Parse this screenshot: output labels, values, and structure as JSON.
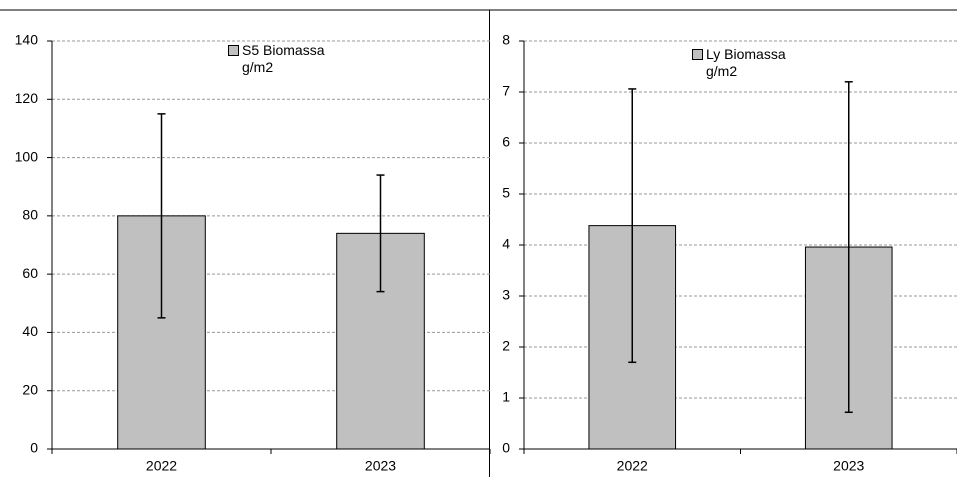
{
  "chart_data": [
    {
      "type": "bar",
      "categories": [
        "2022",
        "2023"
      ],
      "series": [
        {
          "name": "S5 Biomassa g/m2",
          "color": "#c0c0c0",
          "values": [
            80,
            74
          ],
          "errors": [
            35,
            20
          ]
        }
      ],
      "ylim": [
        0,
        140
      ],
      "yticks": [
        0,
        20,
        40,
        60,
        80,
        100,
        120,
        140
      ],
      "grid": true
    },
    {
      "type": "bar",
      "categories": [
        "2022",
        "2023"
      ],
      "series": [
        {
          "name": "Ly Biomassa g/m2",
          "color": "#c0c0c0",
          "values": [
            4.38,
            3.96
          ],
          "errors": [
            2.68,
            3.24
          ]
        }
      ],
      "ylim": [
        0,
        8
      ],
      "yticks": [
        0,
        1,
        2,
        3,
        4,
        5,
        6,
        7,
        8
      ],
      "grid": true
    }
  ]
}
